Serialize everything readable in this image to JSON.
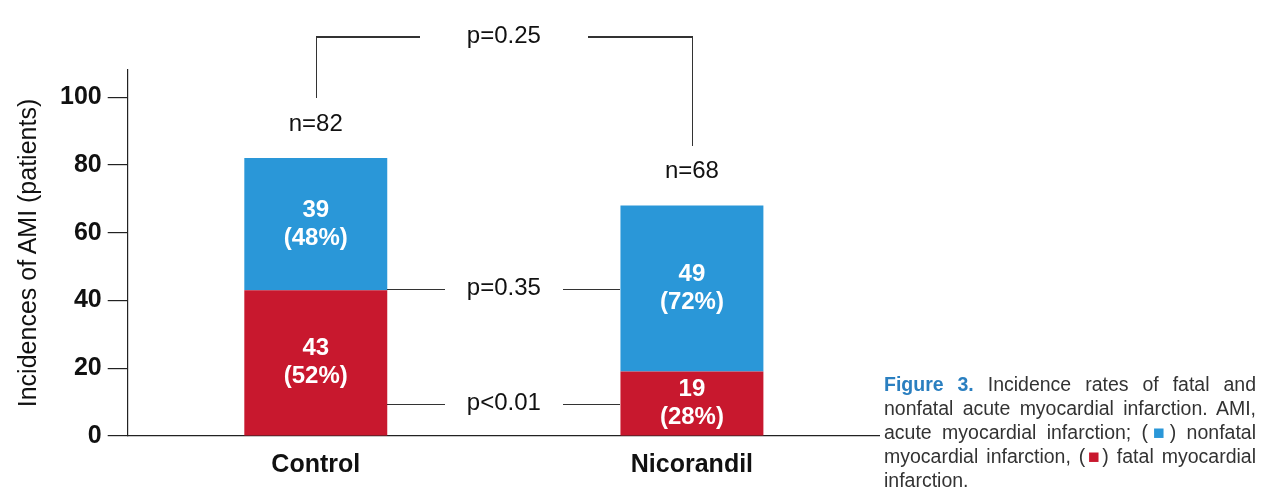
{
  "chart_data": {
    "type": "bar",
    "stacked": true,
    "ylabel": "Incidences of AMI (patients)",
    "categories": [
      "Control",
      "Nicorandil"
    ],
    "series": [
      {
        "color": "#c8182e",
        "values": [
          43,
          19
        ],
        "value_labels": [
          "43 (52%)",
          "19 (28%)"
        ]
      },
      {
        "color": "#2a97d8",
        "values": [
          39,
          49
        ],
        "value_labels": [
          "39 (48%)",
          "49 (72%)"
        ]
      }
    ],
    "totals": [
      "n=82",
      "n=68"
    ],
    "ylim": [
      0,
      108
    ],
    "yticks": [
      0,
      20,
      40,
      60,
      80,
      100
    ],
    "grid": false,
    "legend": false,
    "annotations": [
      "p=0.25",
      "p=0.35",
      "p<0.01",
      "Figure 3. Incidence rates of fatal and nonfatal acute myocardial infarction. AMI, acute myocardial infarction; (■) nonfatal myocardial infarction, (■) fatal myocardial infarction."
    ]
  }
}
